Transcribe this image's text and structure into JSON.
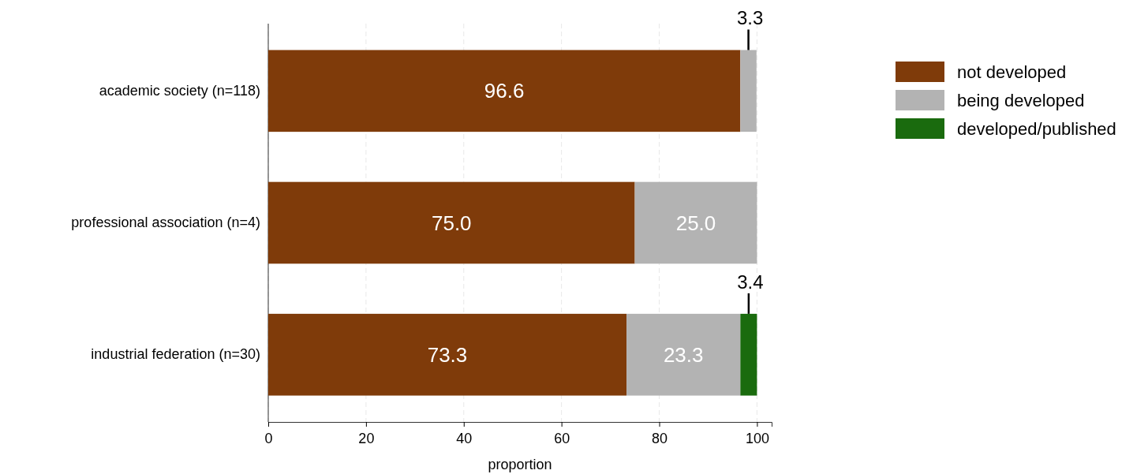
{
  "chart_data": {
    "type": "bar",
    "orientation": "horizontal",
    "stacked": true,
    "xlabel": "proportion",
    "categories": [
      "academic society (n=118)",
      "professional association (n=4)",
      "industrial federation (n=30)"
    ],
    "series": [
      {
        "name": "not developed",
        "color": "#7f3b0a",
        "values": [
          96.6,
          75.0,
          73.3
        ],
        "value_labels": [
          "96.6",
          "75.0",
          "73.3"
        ]
      },
      {
        "name": "being developed",
        "color": "#b3b3b3",
        "values": [
          3.3,
          25.0,
          23.3
        ],
        "value_labels": [
          "3.3",
          "25.0",
          "23.3"
        ]
      },
      {
        "name": "developed/published",
        "color": "#1a6b0e",
        "values": [
          0,
          0,
          3.4
        ],
        "value_labels": [
          null,
          null,
          "3.4"
        ]
      }
    ],
    "xlim": [
      0,
      103
    ],
    "xticks": [
      0,
      20,
      40,
      60,
      80,
      100
    ],
    "grid": "x",
    "legend": "top right"
  }
}
